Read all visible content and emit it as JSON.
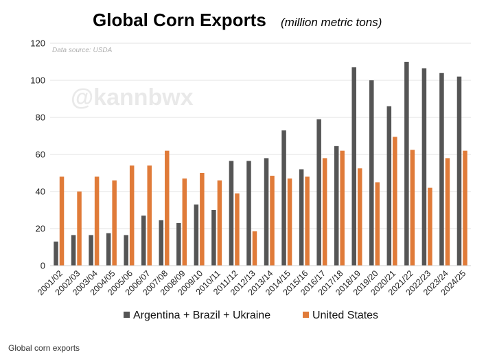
{
  "caption": "Global corn exports",
  "watermark": "@kannbwx",
  "colors": {
    "series_1": "#555555",
    "series_2": "#E07B39",
    "grid": "#e3e3e3"
  },
  "chart_data": {
    "type": "bar",
    "title": "Global Corn Exports",
    "subtitle": "(million metric tons)",
    "source_note": "Data source: USDA",
    "ylim": [
      0,
      120
    ],
    "yticks": [
      0,
      20,
      40,
      60,
      80,
      100,
      120
    ],
    "grid": true,
    "legend_position": "bottom",
    "categories": [
      "2001/02",
      "2002/03",
      "2003/04",
      "2004/05",
      "2005/06",
      "2006/07",
      "2007/08",
      "2008/09",
      "2009/10",
      "2010/11",
      "2011/12",
      "2012/13",
      "2013/14",
      "2014/15",
      "2015/16",
      "2016/17",
      "2017/18",
      "2018/19",
      "2019/20",
      "2020/21",
      "2021/22",
      "2022/23",
      "2023/24",
      "2024/25"
    ],
    "series": [
      {
        "name": "Argentina + Brazil + Ukraine",
        "color": "#555555",
        "values": [
          13,
          16.5,
          16.5,
          17.5,
          16.5,
          27,
          24.5,
          23,
          33,
          30,
          56.5,
          56.5,
          58,
          73,
          52,
          79,
          64.5,
          107,
          100,
          86,
          110,
          106.5,
          104,
          102
        ]
      },
      {
        "name": "United States",
        "color": "#E07B39",
        "values": [
          48,
          40,
          48,
          46,
          54,
          54,
          62,
          47,
          50,
          46,
          39,
          18.5,
          48.5,
          47,
          48,
          58,
          62,
          52.5,
          45,
          69.5,
          62.5,
          42,
          58,
          62
        ]
      }
    ]
  }
}
